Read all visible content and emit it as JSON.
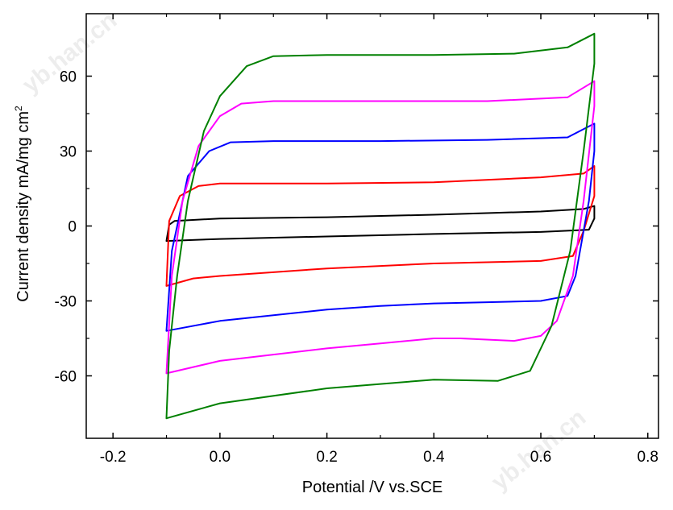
{
  "chart_data": {
    "type": "line",
    "title": "",
    "xlabel": "Potential /V vs.SCE",
    "ylabel": {
      "text": "Current density mA/mg cm",
      "superscript": "2"
    },
    "xlim": [
      -0.25,
      0.82
    ],
    "ylim": [
      -85,
      85
    ],
    "xticks": [
      -0.2,
      0.0,
      0.2,
      0.4,
      0.6,
      0.8
    ],
    "xtick_labels": [
      "-0.2",
      "0.0",
      "0.2",
      "0.4",
      "0.6",
      "0.8"
    ],
    "yticks": [
      -60,
      -30,
      0,
      30,
      60
    ],
    "ytick_labels": [
      "-60",
      "-30",
      "0",
      "30",
      "60"
    ],
    "grid": false,
    "legend": "none",
    "watermarks": [
      "yb.han.cn",
      "yb.han.cn"
    ],
    "series": [
      {
        "color": "#000000",
        "points": [
          [
            -0.1,
            -6
          ],
          [
            -0.095,
            0.5
          ],
          [
            -0.085,
            2
          ],
          [
            0.0,
            3
          ],
          [
            0.2,
            3.5
          ],
          [
            0.4,
            4.5
          ],
          [
            0.6,
            5.8
          ],
          [
            0.68,
            6.8
          ],
          [
            0.7,
            8
          ],
          [
            0.7,
            3
          ],
          [
            0.69,
            -1.5
          ],
          [
            0.6,
            -2.4
          ],
          [
            0.4,
            -3.2
          ],
          [
            0.2,
            -4.2
          ],
          [
            0.0,
            -5.2
          ],
          [
            -0.1,
            -6
          ]
        ]
      },
      {
        "color": "#ff0000",
        "points": [
          [
            -0.1,
            -24
          ],
          [
            -0.095,
            2
          ],
          [
            -0.075,
            12
          ],
          [
            -0.04,
            16
          ],
          [
            0.0,
            17
          ],
          [
            0.2,
            17
          ],
          [
            0.4,
            17.5
          ],
          [
            0.6,
            19.5
          ],
          [
            0.68,
            21
          ],
          [
            0.7,
            24
          ],
          [
            0.7,
            12
          ],
          [
            0.68,
            -2
          ],
          [
            0.66,
            -12
          ],
          [
            0.6,
            -14
          ],
          [
            0.4,
            -15
          ],
          [
            0.2,
            -17
          ],
          [
            0.0,
            -20
          ],
          [
            -0.05,
            -21
          ],
          [
            -0.1,
            -24
          ]
        ]
      },
      {
        "color": "#0000ff",
        "points": [
          [
            -0.1,
            -42
          ],
          [
            -0.09,
            -10
          ],
          [
            -0.06,
            20
          ],
          [
            -0.02,
            30
          ],
          [
            0.02,
            33.5
          ],
          [
            0.1,
            34
          ],
          [
            0.3,
            34
          ],
          [
            0.5,
            34.5
          ],
          [
            0.65,
            35.5
          ],
          [
            0.7,
            41
          ],
          [
            0.7,
            30
          ],
          [
            0.69,
            10
          ],
          [
            0.665,
            -20
          ],
          [
            0.65,
            -28
          ],
          [
            0.6,
            -30
          ],
          [
            0.5,
            -30.5
          ],
          [
            0.4,
            -31
          ],
          [
            0.3,
            -32
          ],
          [
            0.2,
            -33.5
          ],
          [
            0.0,
            -38
          ],
          [
            -0.1,
            -42
          ]
        ]
      },
      {
        "color": "#ff00ff",
        "points": [
          [
            -0.1,
            -59
          ],
          [
            -0.09,
            -20
          ],
          [
            -0.07,
            10
          ],
          [
            -0.04,
            32
          ],
          [
            0.0,
            44
          ],
          [
            0.04,
            49
          ],
          [
            0.1,
            50
          ],
          [
            0.3,
            50
          ],
          [
            0.5,
            50
          ],
          [
            0.65,
            51.5
          ],
          [
            0.7,
            58
          ],
          [
            0.7,
            48
          ],
          [
            0.68,
            10
          ],
          [
            0.66,
            -20
          ],
          [
            0.63,
            -38
          ],
          [
            0.6,
            -44
          ],
          [
            0.55,
            -46
          ],
          [
            0.45,
            -45
          ],
          [
            0.4,
            -45
          ],
          [
            0.3,
            -47
          ],
          [
            0.2,
            -49
          ],
          [
            0.0,
            -54
          ],
          [
            -0.1,
            -59
          ]
        ]
      },
      {
        "color": "#008000",
        "points": [
          [
            -0.1,
            -77
          ],
          [
            -0.095,
            -50
          ],
          [
            -0.08,
            -20
          ],
          [
            -0.06,
            10
          ],
          [
            -0.03,
            38
          ],
          [
            0.0,
            52
          ],
          [
            0.05,
            64
          ],
          [
            0.1,
            68
          ],
          [
            0.2,
            68.5
          ],
          [
            0.4,
            68.5
          ],
          [
            0.55,
            69
          ],
          [
            0.65,
            71.5
          ],
          [
            0.7,
            77
          ],
          [
            0.7,
            65
          ],
          [
            0.68,
            30
          ],
          [
            0.655,
            -10
          ],
          [
            0.62,
            -40
          ],
          [
            0.58,
            -58
          ],
          [
            0.52,
            -62
          ],
          [
            0.4,
            -61.5
          ],
          [
            0.2,
            -65
          ],
          [
            0.0,
            -71
          ],
          [
            -0.1,
            -77
          ]
        ]
      }
    ]
  }
}
